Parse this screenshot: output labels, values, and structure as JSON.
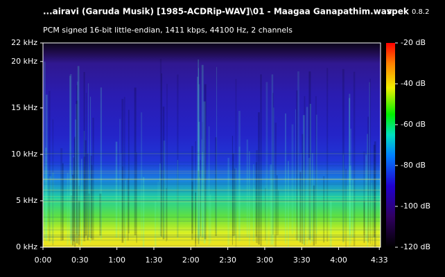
{
  "chart_data": {
    "type": "spectrogram",
    "title": "...airavi (Garuda Musik) [1985-ACDRip-WAV]\\01 - Maagaa Ganapathim.wav",
    "app_name": "spek",
    "app_version": "0.8.2",
    "subtitle": "PCM signed 16-bit little-endian, 1411 kbps, 44100 Hz, 2 channels",
    "xlim": [
      0,
      274
    ],
    "xticks": [
      {
        "value": 0,
        "label": "0:00"
      },
      {
        "value": 30,
        "label": "0:30"
      },
      {
        "value": 60,
        "label": "1:00"
      },
      {
        "value": 90,
        "label": "1:30"
      },
      {
        "value": 120,
        "label": "2:00"
      },
      {
        "value": 150,
        "label": "2:30"
      },
      {
        "value": 180,
        "label": "3:00"
      },
      {
        "value": 210,
        "label": "3:30"
      },
      {
        "value": 240,
        "label": "4:00"
      },
      {
        "value": 273,
        "label": "4:33"
      }
    ],
    "ylim": [
      0,
      22
    ],
    "yticks": [
      {
        "value": 0,
        "label": "0 kHz"
      },
      {
        "value": 5,
        "label": "5 kHz"
      },
      {
        "value": 10,
        "label": "10 kHz"
      },
      {
        "value": 15,
        "label": "15 kHz"
      },
      {
        "value": 20,
        "label": "20 kHz"
      },
      {
        "value": 22,
        "label": "22 kHz"
      }
    ],
    "clim": [
      -120,
      -20
    ],
    "cticks": [
      {
        "value": -20,
        "label": "-20 dB"
      },
      {
        "value": -40,
        "label": "-40 dB"
      },
      {
        "value": -60,
        "label": "-60 dB"
      },
      {
        "value": -80,
        "label": "-80 dB"
      },
      {
        "value": -100,
        "label": "-100 dB"
      },
      {
        "value": -120,
        "label": "-120 dB"
      }
    ]
  }
}
